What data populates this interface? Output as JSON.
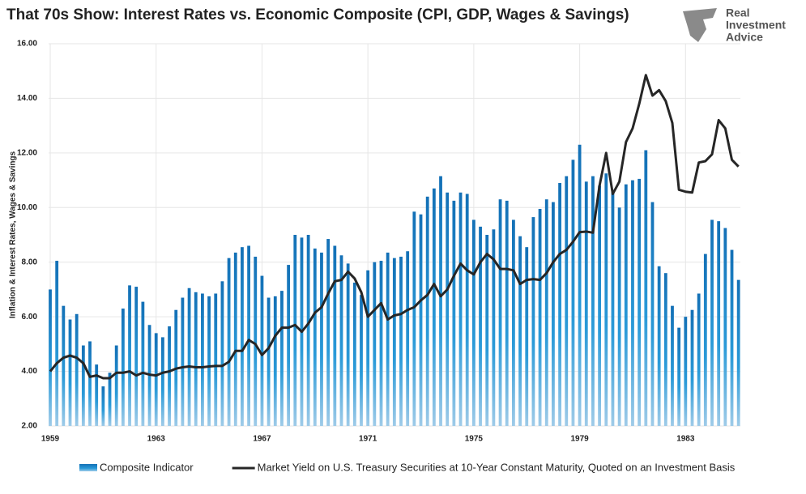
{
  "chart_data": {
    "type": "bar-line",
    "title": "That 70s Show: Interest Rates vs. Economic Composite (CPI, GDP, Wages & Savings)",
    "y_label": "Inflation & Interest Rates, Wages & Savings",
    "categories": [
      "1959",
      null,
      null,
      null,
      null,
      null,
      null,
      null,
      null,
      null,
      null,
      null,
      null,
      null,
      null,
      null,
      "1963",
      null,
      null,
      null,
      null,
      null,
      null,
      null,
      null,
      null,
      null,
      null,
      null,
      null,
      null,
      null,
      "1967",
      null,
      null,
      null,
      null,
      null,
      null,
      null,
      null,
      null,
      null,
      null,
      null,
      null,
      null,
      null,
      "1971",
      null,
      null,
      null,
      null,
      null,
      null,
      null,
      null,
      null,
      null,
      null,
      null,
      null,
      null,
      null,
      "1975",
      null,
      null,
      null,
      null,
      null,
      null,
      null,
      null,
      null,
      null,
      null,
      null,
      null,
      null,
      null,
      "1979",
      null,
      null,
      null,
      null,
      null,
      null,
      null,
      null,
      null,
      null,
      null,
      null,
      null,
      null,
      null,
      "1983",
      null,
      null,
      null,
      null,
      null,
      null,
      null,
      null
    ],
    "series": [
      {
        "name": "Composite Indicator",
        "type": "bar",
        "color": "#1677bd",
        "values": [
          7.0,
          8.05,
          6.4,
          5.9,
          6.1,
          4.95,
          5.1,
          4.25,
          3.45,
          3.95,
          4.95,
          6.3,
          7.15,
          7.1,
          6.55,
          5.7,
          5.4,
          5.25,
          5.65,
          6.25,
          6.7,
          7.05,
          6.9,
          6.85,
          6.75,
          6.85,
          7.3,
          8.15,
          8.35,
          8.55,
          8.6,
          8.2,
          7.5,
          6.7,
          6.75,
          6.95,
          7.9,
          9.0,
          8.9,
          9.0,
          8.5,
          8.35,
          8.85,
          8.6,
          8.25,
          7.95,
          7.25,
          6.8,
          7.7,
          8.0,
          8.05,
          8.35,
          8.15,
          8.2,
          8.4,
          9.85,
          9.75,
          10.4,
          10.7,
          11.15,
          10.55,
          10.25,
          10.55,
          10.5,
          9.55,
          9.3,
          9.0,
          9.2,
          10.3,
          10.25,
          9.55,
          8.95,
          8.55,
          9.65,
          9.95,
          10.3,
          10.2,
          10.9,
          11.15,
          11.75,
          12.3,
          10.95,
          11.15,
          10.8,
          11.25,
          10.6,
          10.0,
          10.85,
          11.0,
          11.05,
          12.1,
          10.2,
          7.85,
          7.6,
          6.4,
          5.6,
          6.0,
          6.25,
          6.85,
          8.3,
          9.55,
          9.5,
          9.25,
          8.45,
          7.35
        ]
      },
      {
        "name": "Market Yield on U.S. Treasury Securities at 10-Year Constant Maturity, Quoted on an Investment Basis",
        "type": "line",
        "color": "#262626",
        "values": [
          4.0,
          4.3,
          4.5,
          4.58,
          4.5,
          4.3,
          3.8,
          3.85,
          3.75,
          3.75,
          3.95,
          3.95,
          4.0,
          3.85,
          3.95,
          3.88,
          3.85,
          3.95,
          4.0,
          4.1,
          4.15,
          4.18,
          4.15,
          4.15,
          4.18,
          4.2,
          4.2,
          4.35,
          4.75,
          4.75,
          5.15,
          5.0,
          4.6,
          4.85,
          5.3,
          5.6,
          5.6,
          5.7,
          5.45,
          5.75,
          6.15,
          6.35,
          6.85,
          7.3,
          7.35,
          7.65,
          7.4,
          6.9,
          6.0,
          6.25,
          6.5,
          5.9,
          6.05,
          6.1,
          6.25,
          6.35,
          6.6,
          6.8,
          7.2,
          6.75,
          7.0,
          7.5,
          7.95,
          7.7,
          7.55,
          8.0,
          8.3,
          8.1,
          7.75,
          7.75,
          7.7,
          7.2,
          7.35,
          7.38,
          7.35,
          7.6,
          8.0,
          8.3,
          8.45,
          8.75,
          9.1,
          9.12,
          9.08,
          10.8,
          12.0,
          10.5,
          10.95,
          12.4,
          12.9,
          13.8,
          14.85,
          14.1,
          14.3,
          13.9,
          13.1,
          10.65,
          10.58,
          10.55,
          11.65,
          11.7,
          11.95,
          13.2,
          12.9,
          11.75,
          11.5
        ]
      }
    ],
    "ylim": [
      2,
      16
    ],
    "yticks": [
      {
        "value": 2,
        "label": "2.00"
      },
      {
        "value": 4,
        "label": "4.00"
      },
      {
        "value": 6,
        "label": "6.00"
      },
      {
        "value": 8,
        "label": "8.00"
      },
      {
        "value": 10,
        "label": "10.00"
      },
      {
        "value": 12,
        "label": "12.00"
      },
      {
        "value": 14,
        "label": "14.00"
      },
      {
        "value": 16,
        "label": "16.00"
      }
    ],
    "grid": true,
    "legend": "bottom"
  },
  "logo": [
    "Real",
    "Investment",
    "Advice"
  ]
}
